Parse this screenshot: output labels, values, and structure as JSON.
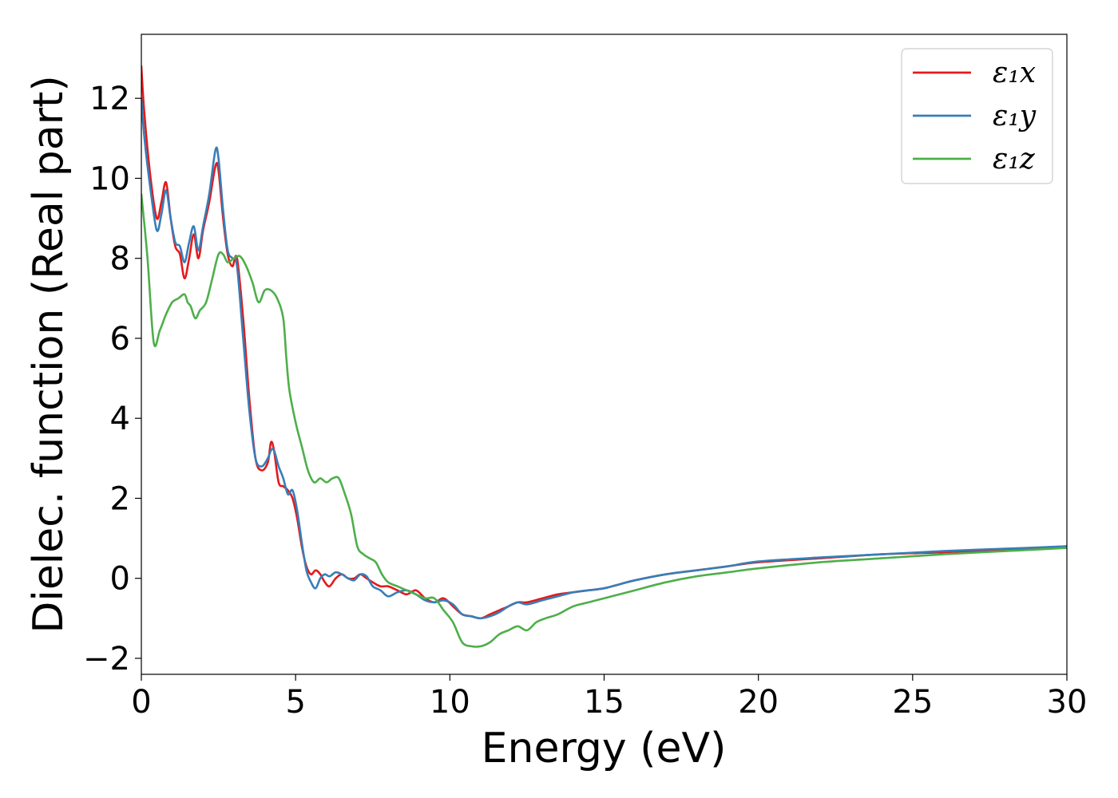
{
  "chart_data": {
    "type": "line",
    "xlabel": "Energy (eV)",
    "ylabel": "Dielec. function (Real part)",
    "xlim": [
      0,
      30
    ],
    "ylim": [
      -2.4,
      13.6
    ],
    "x_ticks": [
      0,
      5,
      10,
      15,
      20,
      25,
      30
    ],
    "x_tick_labels": [
      "0",
      "5",
      "10",
      "15",
      "20",
      "25",
      "30"
    ],
    "y_ticks": [
      -2,
      0,
      2,
      4,
      6,
      8,
      10,
      12
    ],
    "y_tick_labels": [
      "−2",
      "0",
      "2",
      "4",
      "6",
      "8",
      "10",
      "12"
    ],
    "grid": false,
    "legend_position": "top-right",
    "series": [
      {
        "name": "ε₁x",
        "color": "#e41a1c",
        "x": [
          0,
          0.1,
          0.3,
          0.5,
          0.65,
          0.8,
          0.95,
          1.1,
          1.25,
          1.4,
          1.55,
          1.7,
          1.85,
          2.0,
          2.2,
          2.4,
          2.5,
          2.65,
          2.8,
          2.95,
          3.1,
          3.3,
          3.5,
          3.7,
          3.9,
          4.1,
          4.2,
          4.3,
          4.45,
          4.6,
          4.75,
          4.9,
          5.05,
          5.2,
          5.35,
          5.5,
          5.65,
          5.8,
          5.95,
          6.1,
          6.3,
          6.5,
          6.7,
          6.9,
          7.1,
          7.3,
          7.5,
          7.75,
          8.0,
          8.3,
          8.6,
          8.9,
          9.2,
          9.5,
          9.8,
          10.1,
          10.4,
          10.7,
          11.0,
          11.3,
          11.6,
          11.9,
          12.2,
          12.5,
          13.0,
          13.5,
          14.0,
          14.5,
          15.0,
          15.5,
          16.0,
          17.0,
          18.0,
          19.0,
          20.0,
          22.0,
          24.0,
          26.0,
          28.0,
          30.0
        ],
        "y": [
          12.8,
          11.6,
          10.0,
          9.0,
          9.4,
          9.9,
          9.0,
          8.3,
          8.1,
          7.5,
          8.0,
          8.6,
          8.0,
          8.7,
          9.4,
          10.3,
          10.2,
          9.0,
          8.1,
          7.8,
          8.0,
          6.5,
          4.5,
          3.0,
          2.7,
          2.9,
          3.4,
          3.2,
          2.4,
          2.3,
          2.2,
          2.0,
          1.5,
          0.8,
          0.3,
          0.1,
          0.2,
          0.1,
          -0.1,
          -0.2,
          0.0,
          0.1,
          0.0,
          0.0,
          0.1,
          0.0,
          -0.1,
          -0.2,
          -0.2,
          -0.3,
          -0.4,
          -0.3,
          -0.5,
          -0.6,
          -0.5,
          -0.7,
          -0.9,
          -0.95,
          -1.0,
          -0.9,
          -0.8,
          -0.7,
          -0.6,
          -0.6,
          -0.5,
          -0.4,
          -0.35,
          -0.3,
          -0.25,
          -0.15,
          -0.05,
          0.1,
          0.2,
          0.3,
          0.4,
          0.5,
          0.6,
          0.65,
          0.72,
          0.8
        ]
      },
      {
        "name": "ε₁y",
        "color": "#377eb8",
        "x": [
          0,
          0.1,
          0.3,
          0.5,
          0.65,
          0.8,
          0.95,
          1.1,
          1.25,
          1.4,
          1.55,
          1.7,
          1.85,
          2.0,
          2.2,
          2.4,
          2.5,
          2.65,
          2.8,
          2.95,
          3.1,
          3.3,
          3.5,
          3.7,
          3.9,
          4.1,
          4.2,
          4.3,
          4.45,
          4.6,
          4.75,
          4.9,
          5.05,
          5.2,
          5.35,
          5.5,
          5.65,
          5.8,
          5.95,
          6.1,
          6.3,
          6.5,
          6.7,
          6.9,
          7.1,
          7.3,
          7.5,
          7.75,
          8.0,
          8.3,
          8.6,
          8.9,
          9.2,
          9.5,
          9.8,
          10.1,
          10.4,
          10.7,
          11.0,
          11.3,
          11.6,
          11.9,
          12.2,
          12.5,
          13.0,
          13.5,
          14.0,
          14.5,
          15.0,
          15.5,
          16.0,
          17.0,
          18.0,
          19.0,
          20.0,
          22.0,
          24.0,
          26.0,
          28.0,
          30.0
        ],
        "y": [
          12.0,
          11.0,
          9.7,
          8.7,
          9.1,
          9.7,
          9.0,
          8.4,
          8.3,
          7.9,
          8.4,
          8.8,
          8.2,
          8.8,
          9.6,
          10.7,
          10.5,
          9.2,
          8.2,
          8.0,
          7.8,
          6.0,
          4.2,
          3.0,
          2.8,
          3.0,
          3.2,
          3.2,
          2.8,
          2.5,
          2.1,
          2.2,
          1.7,
          0.9,
          0.2,
          -0.1,
          -0.25,
          0.0,
          0.1,
          0.05,
          0.15,
          0.1,
          0.0,
          -0.05,
          0.1,
          0.05,
          -0.2,
          -0.3,
          -0.45,
          -0.35,
          -0.3,
          -0.4,
          -0.55,
          -0.6,
          -0.55,
          -0.65,
          -0.9,
          -0.95,
          -1.0,
          -0.95,
          -0.85,
          -0.7,
          -0.6,
          -0.65,
          -0.55,
          -0.45,
          -0.35,
          -0.3,
          -0.25,
          -0.15,
          -0.05,
          0.1,
          0.2,
          0.3,
          0.42,
          0.52,
          0.6,
          0.68,
          0.74,
          0.8
        ]
      },
      {
        "name": "ε₁z",
        "color": "#4daf4a",
        "x": [
          0,
          0.2,
          0.4,
          0.6,
          0.8,
          1.0,
          1.2,
          1.4,
          1.5,
          1.6,
          1.75,
          1.9,
          2.1,
          2.3,
          2.5,
          2.65,
          2.8,
          3.0,
          3.2,
          3.4,
          3.6,
          3.8,
          4.0,
          4.2,
          4.4,
          4.6,
          4.7,
          4.8,
          5.0,
          5.2,
          5.4,
          5.6,
          5.8,
          6.0,
          6.2,
          6.4,
          6.6,
          6.8,
          7.0,
          7.2,
          7.4,
          7.6,
          7.8,
          8.0,
          8.3,
          8.6,
          8.9,
          9.2,
          9.5,
          9.8,
          10.1,
          10.4,
          10.7,
          11.0,
          11.3,
          11.6,
          11.9,
          12.2,
          12.5,
          12.8,
          13.1,
          13.5,
          14.0,
          14.5,
          15.0,
          15.5,
          16.0,
          17.0,
          18.0,
          19.0,
          20.0,
          22.0,
          24.0,
          26.0,
          28.0,
          30.0
        ],
        "y": [
          9.6,
          8.0,
          5.9,
          6.2,
          6.6,
          6.9,
          7.0,
          7.1,
          6.9,
          6.8,
          6.5,
          6.7,
          6.9,
          7.5,
          8.1,
          8.1,
          7.9,
          8.0,
          8.05,
          7.8,
          7.4,
          6.9,
          7.2,
          7.2,
          7.0,
          6.5,
          5.5,
          4.7,
          3.9,
          3.3,
          2.7,
          2.4,
          2.5,
          2.4,
          2.5,
          2.5,
          2.1,
          1.6,
          0.8,
          0.6,
          0.5,
          0.4,
          0.1,
          -0.1,
          -0.2,
          -0.3,
          -0.4,
          -0.5,
          -0.5,
          -0.8,
          -1.1,
          -1.6,
          -1.7,
          -1.7,
          -1.6,
          -1.4,
          -1.3,
          -1.2,
          -1.3,
          -1.1,
          -1.0,
          -0.9,
          -0.7,
          -0.6,
          -0.5,
          -0.4,
          -0.3,
          -0.1,
          0.05,
          0.15,
          0.25,
          0.4,
          0.5,
          0.6,
          0.68,
          0.76
        ]
      }
    ]
  }
}
